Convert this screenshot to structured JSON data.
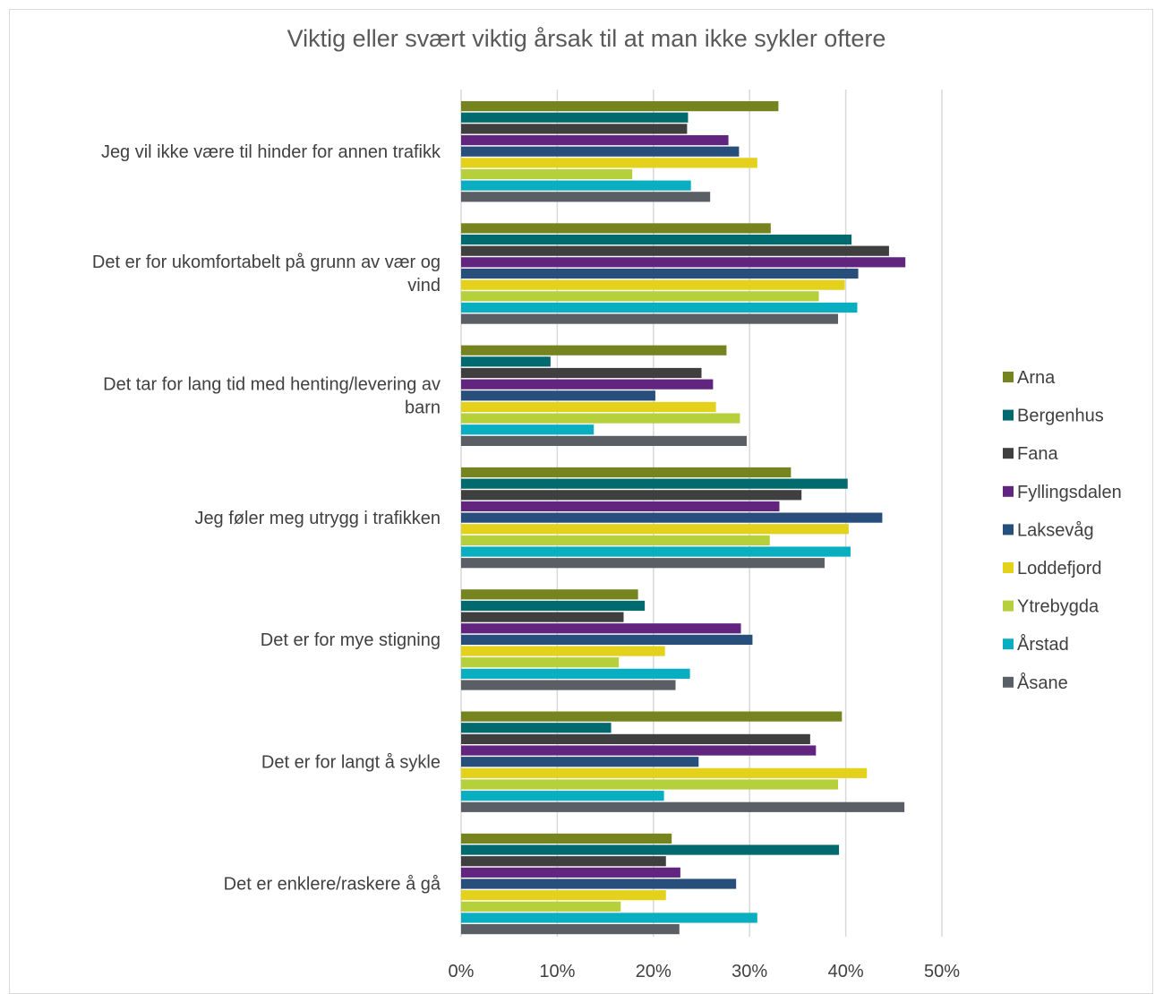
{
  "chart_data": {
    "type": "bar",
    "orientation": "horizontal",
    "title": "Viktig eller svært viktig årsak til at man ikke sykler oftere",
    "categories": [
      [
        "Jeg vil ikke være til hinder for annen trafikk"
      ],
      [
        "Det er for ukomfortabelt på grunn av vær og",
        "vind"
      ],
      [
        "Det tar for lang tid med henting/levering av",
        "barn"
      ],
      [
        "Jeg føler meg utrygg i trafikken"
      ],
      [
        "Det er for mye stigning"
      ],
      [
        "Det er for langt å sykle"
      ],
      [
        "Det er enklere/raskere å gå"
      ]
    ],
    "xlim": [
      0,
      50
    ],
    "xticks": [
      "0%",
      "10%",
      "20%",
      "30%",
      "40%",
      "50%"
    ],
    "grid": true,
    "legend_position": "right",
    "series": [
      {
        "name": "Arna",
        "color": "#76841f",
        "values": [
          33,
          32.2,
          27.6,
          34.3,
          18.4,
          39.6,
          21.9
        ]
      },
      {
        "name": "Bergenhus",
        "color": "#006a6e",
        "values": [
          23.6,
          40.6,
          9.3,
          40.2,
          19.1,
          15.6,
          39.3
        ]
      },
      {
        "name": "Fana",
        "color": "#3f3f3f",
        "values": [
          23.5,
          44.5,
          25,
          35.4,
          16.9,
          36.3,
          21.3
        ]
      },
      {
        "name": "Fyllingsdalen",
        "color": "#612580",
        "values": [
          27.8,
          46.2,
          26.2,
          33.1,
          29.1,
          36.9,
          22.8
        ]
      },
      {
        "name": "Laksevåg",
        "color": "#284f7b",
        "values": [
          28.9,
          41.3,
          20.2,
          43.8,
          30.3,
          24.7,
          28.6
        ]
      },
      {
        "name": "Loddefjord",
        "color": "#e4d11c",
        "values": [
          30.8,
          39.9,
          26.5,
          40.3,
          21.2,
          42.2,
          21.3
        ]
      },
      {
        "name": "Ytrebygda",
        "color": "#b5d03a",
        "values": [
          17.8,
          37.2,
          29,
          32.1,
          16.4,
          39.2,
          16.6
        ]
      },
      {
        "name": "Årstad",
        "color": "#09afc0",
        "values": [
          23.9,
          41.2,
          13.8,
          40.5,
          23.8,
          21.1,
          30.8
        ]
      },
      {
        "name": "Åsane",
        "color": "#5a5f66",
        "values": [
          25.9,
          39.2,
          29.7,
          37.8,
          22.3,
          46.1,
          22.7
        ]
      }
    ]
  }
}
